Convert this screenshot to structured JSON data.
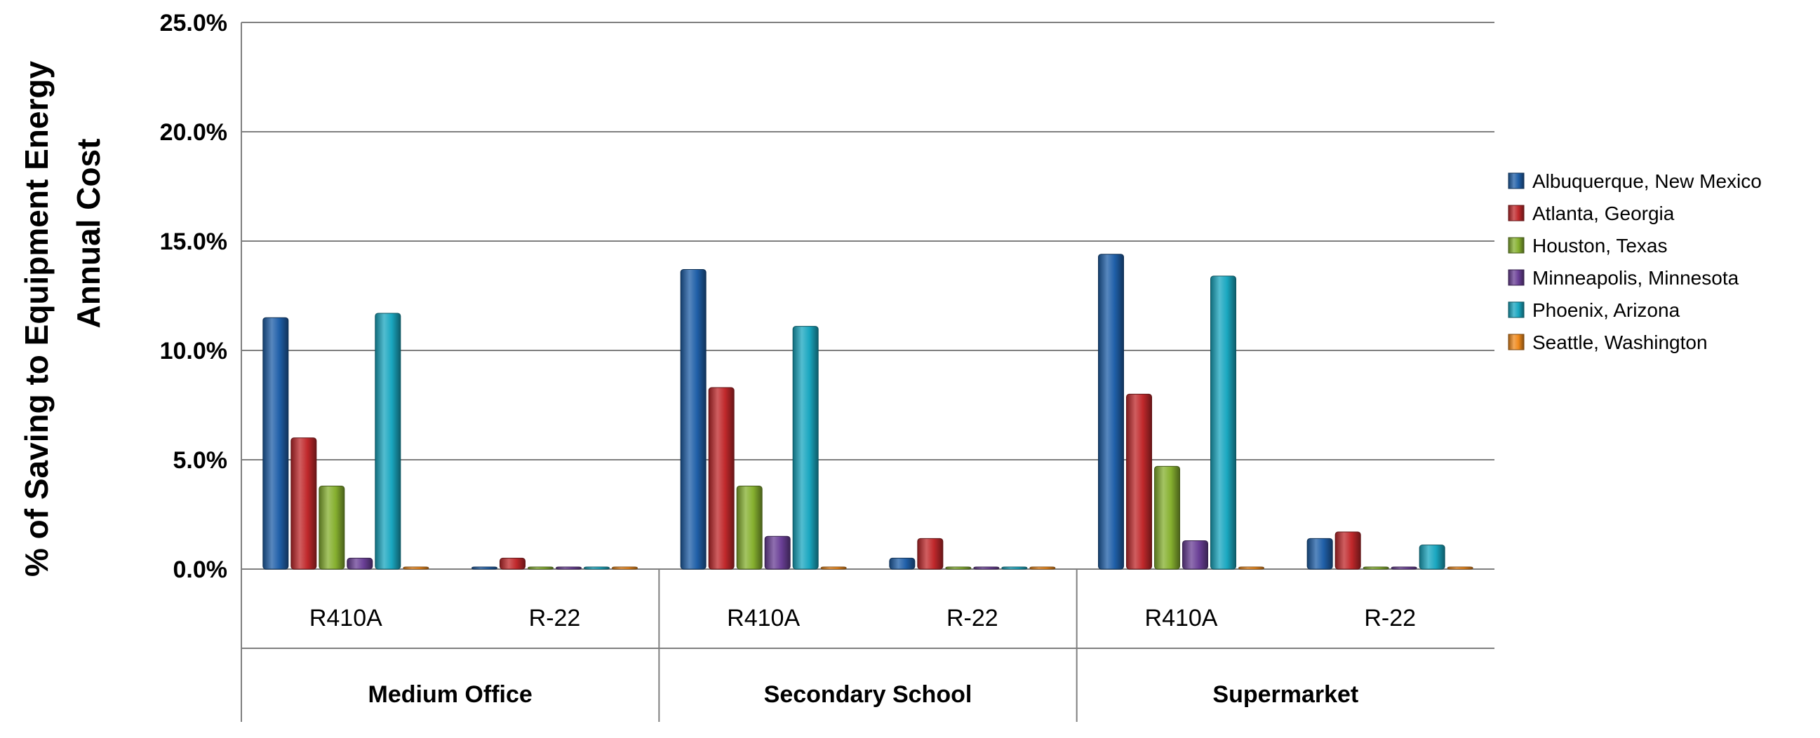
{
  "chart_data": {
    "type": "bar",
    "title": "",
    "xlabel": "",
    "ylabel": [
      "% of Saving to Equipment Energy",
      "Annual Cost"
    ],
    "ylim": [
      0,
      25
    ],
    "yticks": [
      "0.0%",
      "5.0%",
      "10.0%",
      "15.0%",
      "20.0%",
      "25.0%"
    ],
    "ytick_values": [
      0,
      5,
      10,
      15,
      20,
      25
    ],
    "grid": true,
    "legend_position": "right",
    "groups": [
      "Medium Office",
      "Secondary School",
      "Supermarket"
    ],
    "subcategories": [
      "R410A",
      "R-22"
    ],
    "categories": [
      "Medium Office R410A",
      "Medium Office R-22",
      "Secondary School R410A",
      "Secondary School R-22",
      "Supermarket R410A",
      "Supermarket R-22"
    ],
    "series": [
      {
        "name": "Albuquerque, New Mexico",
        "color": "#1f5fa8",
        "values": [
          11.5,
          0.0,
          13.7,
          0.5,
          14.4,
          1.4
        ]
      },
      {
        "name": "Atlanta, Georgia",
        "color": "#c0282b",
        "values": [
          6.0,
          0.5,
          8.3,
          1.4,
          8.0,
          1.7
        ]
      },
      {
        "name": "Houston, Texas",
        "color": "#86b02f",
        "values": [
          3.8,
          0.0,
          3.8,
          0.0,
          4.7,
          0.0
        ]
      },
      {
        "name": "Minneapolis, Minnesota",
        "color": "#6a3f96",
        "values": [
          0.5,
          0.0,
          1.5,
          0.0,
          1.3,
          0.0
        ]
      },
      {
        "name": "Phoenix, Arizona",
        "color": "#1aa7c0",
        "values": [
          11.7,
          0.0,
          11.1,
          0.0,
          13.4,
          1.1
        ]
      },
      {
        "name": "Seattle, Washington",
        "color": "#f08a1c",
        "values": [
          0.0,
          0.0,
          0.0,
          0.0,
          0.0,
          0.0
        ]
      }
    ]
  }
}
